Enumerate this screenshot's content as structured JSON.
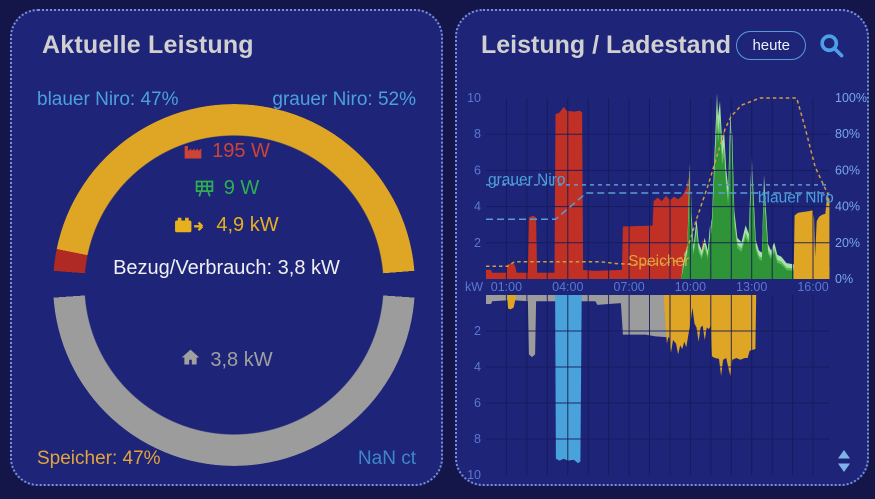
{
  "page": {
    "background": "#14164a",
    "panel_background": "#1e2578",
    "panel_border": "#7b8fd4"
  },
  "left_panel": {
    "title": "Aktuelle Leistung",
    "top_left_label": "blauer Niro: 47%",
    "top_right_label": "grauer Niro: 52%",
    "gauge": {
      "stops": [
        {
          "color": "#dfa525",
          "from": 0,
          "to": 85.5
        },
        {
          "color": "transparent",
          "from": 85.5,
          "to": 94
        },
        {
          "color": "#9c9c9c",
          "from": 94,
          "to": 266
        },
        {
          "color": "transparent",
          "from": 266,
          "to": 274.5
        },
        {
          "color": "#b02a23",
          "from": 274.5,
          "to": 281.5
        },
        {
          "color": "#dfa525",
          "from": 281.5,
          "to": 360
        }
      ],
      "metrics": [
        {
          "icon": "factory-icon",
          "value": "195 W",
          "color": "#cd4334"
        },
        {
          "icon": "solar-panel-icon",
          "value": "9 W",
          "color": "#2eb050"
        },
        {
          "icon": "battery-arrow-icon",
          "value": "4,9 kW",
          "color": "#e7b01e"
        }
      ],
      "consumption_label": "Bezug/Verbrauch: 3,8 kW",
      "house_value": "3,8 kW"
    },
    "bottom_left_label": "Speicher: 47%",
    "bottom_right_label": "NaN ct"
  },
  "right_panel": {
    "title": "Leistung / Ladestand",
    "range_button_label": "heute",
    "icons": [
      "search-icon",
      "sort-icon"
    ]
  },
  "chart_data": {
    "type": "area",
    "title": "Leistung / Ladestand",
    "unit_left": "kW",
    "unit_right": "%",
    "x_range_hours": [
      0,
      16.8
    ],
    "ylim_top_kw": [
      0,
      10
    ],
    "ylim_bottom_kw": [
      0,
      -10
    ],
    "pct_axis": [
      0,
      100
    ],
    "grid": true,
    "time_ticks": [
      {
        "t": 1,
        "label": "01:00"
      },
      {
        "t": 4,
        "label": "04:00"
      },
      {
        "t": 7,
        "label": "07:00"
      },
      {
        "t": 10,
        "label": "10:00"
      },
      {
        "t": 13,
        "label": "13:00"
      },
      {
        "t": 16,
        "label": "16:00"
      }
    ],
    "kw_ticks_top": [
      10,
      8,
      6,
      4,
      2
    ],
    "kw_ticks_bottom": [
      2,
      4,
      6,
      8,
      10
    ],
    "pct_ticks": [
      100,
      80,
      60,
      40,
      20,
      0
    ],
    "series": [
      {
        "name": "netzbezug",
        "side": "top",
        "color": "#c03024",
        "points": [
          [
            0,
            0.5
          ],
          [
            0.25,
            0.5
          ],
          [
            0.3,
            0.35
          ],
          [
            1.0,
            0.35
          ],
          [
            1.05,
            0.8
          ],
          [
            1.2,
            0.85
          ],
          [
            1.4,
            0.8
          ],
          [
            1.5,
            0.35
          ],
          [
            2.05,
            0.35
          ],
          [
            2.1,
            3.4
          ],
          [
            2.3,
            3.5
          ],
          [
            2.45,
            3.4
          ],
          [
            2.5,
            0.35
          ],
          [
            3.35,
            0.35
          ],
          [
            3.4,
            9.1
          ],
          [
            3.6,
            9.2
          ],
          [
            3.8,
            9.5
          ],
          [
            3.95,
            9.3
          ],
          [
            4.3,
            9.25
          ],
          [
            4.6,
            9.3
          ],
          [
            4.7,
            9.2
          ],
          [
            4.75,
            0.5
          ],
          [
            5.3,
            0.45
          ],
          [
            6.65,
            0.5
          ],
          [
            6.7,
            2.9
          ],
          [
            8.15,
            2.95
          ],
          [
            8.2,
            4.3
          ],
          [
            8.4,
            4.5
          ],
          [
            8.6,
            4.3
          ],
          [
            8.8,
            4.6
          ],
          [
            9.0,
            4.35
          ],
          [
            9.2,
            4.55
          ],
          [
            9.4,
            4.4
          ],
          [
            9.6,
            4.6
          ],
          [
            9.8,
            5.0
          ],
          [
            9.9,
            5.6
          ],
          [
            9.95,
            5.3
          ],
          [
            10.0,
            4.5
          ],
          [
            10.05,
            0.9
          ],
          [
            10.15,
            1.3
          ],
          [
            10.25,
            0.7
          ],
          [
            10.45,
            1.0
          ],
          [
            10.6,
            2.2
          ],
          [
            10.75,
            1.1
          ],
          [
            10.9,
            1.9
          ],
          [
            11.0,
            1.2
          ],
          [
            11.1,
            0.3
          ],
          [
            11.3,
            0.15
          ],
          [
            16.8,
            0.1
          ]
        ]
      },
      {
        "name": "pv-erzeugung",
        "side": "top",
        "color": "#2e9437",
        "layers": [
          {
            "color": "#a9e0a9",
            "scale": 1.16,
            "add": 0.3
          },
          {
            "color": "#5cbb5c",
            "scale": 1.07,
            "add": 0.1
          },
          {
            "color": "#2e9437",
            "scale": 1.0,
            "add": 0
          }
        ],
        "points": [
          [
            9.55,
            0
          ],
          [
            9.65,
            0.5
          ],
          [
            9.75,
            1.0
          ],
          [
            9.85,
            1.3
          ],
          [
            9.95,
            4.8
          ],
          [
            10.0,
            5.5
          ],
          [
            10.05,
            3.0
          ],
          [
            10.15,
            1.3
          ],
          [
            10.3,
            2.6
          ],
          [
            10.4,
            1.5
          ],
          [
            10.55,
            1.1
          ],
          [
            10.7,
            1.7
          ],
          [
            10.85,
            1.1
          ],
          [
            10.95,
            2.2
          ],
          [
            11.05,
            2.6
          ],
          [
            11.15,
            5.0
          ],
          [
            11.3,
            8.6
          ],
          [
            11.35,
            7.5
          ],
          [
            11.45,
            8.2
          ],
          [
            11.55,
            6.3
          ],
          [
            11.65,
            6.8
          ],
          [
            11.75,
            5.0
          ],
          [
            11.85,
            4.1
          ],
          [
            11.95,
            7.7
          ],
          [
            12.05,
            6.6
          ],
          [
            12.15,
            3.0
          ],
          [
            12.3,
            1.7
          ],
          [
            12.5,
            1.5
          ],
          [
            12.7,
            2.3
          ],
          [
            12.85,
            1.9
          ],
          [
            12.95,
            4.5
          ],
          [
            13.0,
            5.7
          ],
          [
            13.1,
            3.5
          ],
          [
            13.2,
            1.6
          ],
          [
            13.35,
            1.1
          ],
          [
            13.5,
            1.0
          ],
          [
            13.6,
            4.7
          ],
          [
            13.7,
            3.0
          ],
          [
            13.8,
            1.4
          ],
          [
            13.95,
            1.1
          ],
          [
            14.1,
            1.5
          ],
          [
            14.25,
            0.9
          ],
          [
            14.45,
            0.8
          ],
          [
            14.7,
            0.5
          ],
          [
            15.0,
            0.45
          ],
          [
            15.4,
            0.4
          ],
          [
            16.0,
            0.35
          ],
          [
            16.5,
            0.3
          ],
          [
            16.8,
            0.35
          ]
        ]
      },
      {
        "name": "speicher-entladung",
        "side": "top",
        "color": "#dfa525",
        "points": [
          [
            15.05,
            0
          ],
          [
            15.1,
            3.5
          ],
          [
            15.25,
            3.65
          ],
          [
            15.5,
            3.7
          ],
          [
            15.8,
            3.75
          ],
          [
            16.0,
            3.8
          ],
          [
            16.05,
            3.3
          ],
          [
            16.1,
            1.2
          ],
          [
            16.18,
            3.2
          ],
          [
            16.3,
            3.45
          ],
          [
            16.45,
            3.55
          ],
          [
            16.6,
            3.6
          ],
          [
            16.7,
            4.6
          ],
          [
            16.8,
            4.4
          ]
        ]
      },
      {
        "name": "hausverbrauch",
        "side": "bottom",
        "color": "#9c9c9c",
        "points": [
          [
            0,
            0.5
          ],
          [
            0.25,
            0.5
          ],
          [
            0.3,
            0.35
          ],
          [
            1.0,
            0.3
          ],
          [
            1.45,
            0.3
          ],
          [
            2.05,
            0.35
          ],
          [
            2.1,
            3.3
          ],
          [
            2.25,
            3.45
          ],
          [
            2.4,
            3.3
          ],
          [
            2.45,
            0.35
          ],
          [
            3.3,
            0.35
          ],
          [
            4.75,
            0.35
          ],
          [
            5.35,
            0.35
          ],
          [
            5.45,
            0.55
          ],
          [
            6.0,
            0.5
          ],
          [
            6.6,
            0.45
          ],
          [
            6.7,
            2.2
          ],
          [
            7.8,
            2.2
          ],
          [
            8.3,
            2.3
          ],
          [
            8.9,
            2.35
          ],
          [
            9.4,
            2.45
          ],
          [
            9.65,
            2.35
          ],
          [
            9.7,
            0.3
          ],
          [
            10.2,
            0.2
          ],
          [
            10.4,
            0
          ]
        ]
      },
      {
        "name": "blauer-niro-ladung",
        "side": "bottom",
        "color": "#4aa2da",
        "points": [
          [
            3.38,
            0
          ],
          [
            3.42,
            9.1
          ],
          [
            3.6,
            9.2
          ],
          [
            3.8,
            9.1
          ],
          [
            4.0,
            9.2
          ],
          [
            4.3,
            9.15
          ],
          [
            4.5,
            9.35
          ],
          [
            4.62,
            9.25
          ],
          [
            4.68,
            0
          ]
        ]
      },
      {
        "name": "speicher-ladung",
        "side": "bottom",
        "color": "#dfa525",
        "points": [
          [
            1.03,
            0
          ],
          [
            1.08,
            0.75
          ],
          [
            1.2,
            0.8
          ],
          [
            1.35,
            0.7
          ],
          [
            1.45,
            0.2
          ],
          [
            1.5,
            0
          ],
          [
            8.7,
            0
          ],
          [
            8.75,
            1.2
          ],
          [
            8.85,
            2.7
          ],
          [
            8.95,
            2.2
          ],
          [
            9.05,
            3.2
          ],
          [
            9.15,
            2.5
          ],
          [
            9.3,
            2.7
          ],
          [
            9.4,
            3.3
          ],
          [
            9.5,
            2.8
          ],
          [
            9.6,
            3.0
          ],
          [
            9.7,
            2.6
          ],
          [
            9.8,
            2.9
          ],
          [
            9.9,
            2.2
          ],
          [
            10.0,
            1.6
          ],
          [
            10.1,
            0.7
          ],
          [
            10.2,
            1.6
          ],
          [
            10.3,
            1.8
          ],
          [
            10.4,
            2.6
          ],
          [
            10.5,
            1.8
          ],
          [
            10.6,
            1.7
          ],
          [
            10.7,
            2.5
          ],
          [
            10.8,
            1.8
          ],
          [
            10.9,
            1.9
          ],
          [
            11.0,
            1.7
          ],
          [
            11.05,
            3.4
          ],
          [
            11.2,
            3.5
          ],
          [
            11.4,
            3.55
          ],
          [
            11.5,
            4.5
          ],
          [
            11.6,
            3.6
          ],
          [
            11.75,
            3.5
          ],
          [
            11.85,
            4.0
          ],
          [
            11.95,
            4.5
          ],
          [
            12.05,
            3.6
          ],
          [
            12.25,
            3.5
          ],
          [
            12.45,
            3.6
          ],
          [
            12.65,
            3.5
          ],
          [
            12.8,
            3.5
          ],
          [
            12.9,
            3.1
          ],
          [
            13.05,
            3.05
          ],
          [
            13.18,
            3.0
          ],
          [
            13.22,
            0
          ]
        ]
      }
    ],
    "lines": [
      {
        "name": "grauer-niro-ladestand",
        "color": "#5b9bd5",
        "dash": "4 4",
        "points": [
          [
            0,
            52
          ],
          [
            16.8,
            52
          ]
        ]
      },
      {
        "name": "blauer-niro-ladestand",
        "color": "#5b9bd5",
        "dash": "7 4",
        "points": [
          [
            0,
            33
          ],
          [
            3.4,
            33
          ],
          [
            4.9,
            47.5
          ],
          [
            16.8,
            47.5
          ]
        ]
      },
      {
        "name": "speicher-ladestand",
        "color": "#cf9c42",
        "dash": "3.5 3",
        "points": [
          [
            0,
            7
          ],
          [
            1.05,
            7
          ],
          [
            1.4,
            9.5
          ],
          [
            5.6,
            9.5
          ],
          [
            6.4,
            8.5
          ],
          [
            7.3,
            8
          ],
          [
            8.6,
            8.5
          ],
          [
            9.3,
            10
          ],
          [
            9.7,
            13
          ],
          [
            10.0,
            22
          ],
          [
            10.3,
            33
          ],
          [
            10.9,
            53
          ],
          [
            11.3,
            68
          ],
          [
            11.7,
            83
          ],
          [
            12.0,
            90
          ],
          [
            12.5,
            96
          ],
          [
            13.4,
            100
          ],
          [
            15.2,
            100
          ],
          [
            15.6,
            84
          ],
          [
            16.1,
            62
          ],
          [
            16.8,
            45
          ]
        ]
      }
    ],
    "annotations": [
      {
        "text": "grauer Niro",
        "t": 0.1,
        "pct": 55,
        "color": "#4ba0dd"
      },
      {
        "text": "blauer Niro",
        "t": 13.3,
        "pct": 45,
        "color": "#4ba0dd"
      },
      {
        "text": "Speicher",
        "t": 6.95,
        "pct": 10,
        "color": "#e3a43d"
      }
    ]
  }
}
